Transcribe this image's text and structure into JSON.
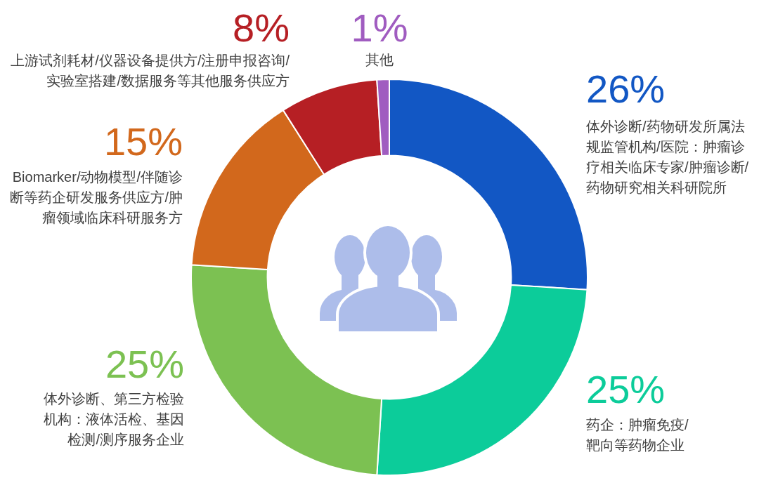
{
  "chart_data": {
    "type": "donut",
    "categories": [
      "体外诊断/药物研发所属法规监管机构/医院：肿瘤诊疗相关临床专家/肿瘤诊断/药物研究相关科研院所",
      "药企：肿瘤免疫/靶向等药物企业",
      "体外诊断、第三方检验机构：液体活检、基因检测/测序服务企业",
      "Biomarker/动物模型/伴随诊断等药企研发服务供应方/肿瘤领域临床科研服务方",
      "上游试剂耗材/仪器设备提供方/注册申报咨询/实验室搭建/数据服务等其他服务供应方",
      "其他"
    ],
    "values": [
      26,
      25,
      25,
      15,
      8,
      1
    ],
    "colors": [
      "#1257c4",
      "#0ccc9a",
      "#7cc152",
      "#d2681c",
      "#b61f24",
      "#a05cc0"
    ],
    "value_labels": [
      "26%",
      "25%",
      "25%",
      "15%",
      "8%",
      "1%"
    ],
    "legend": false
  }
}
